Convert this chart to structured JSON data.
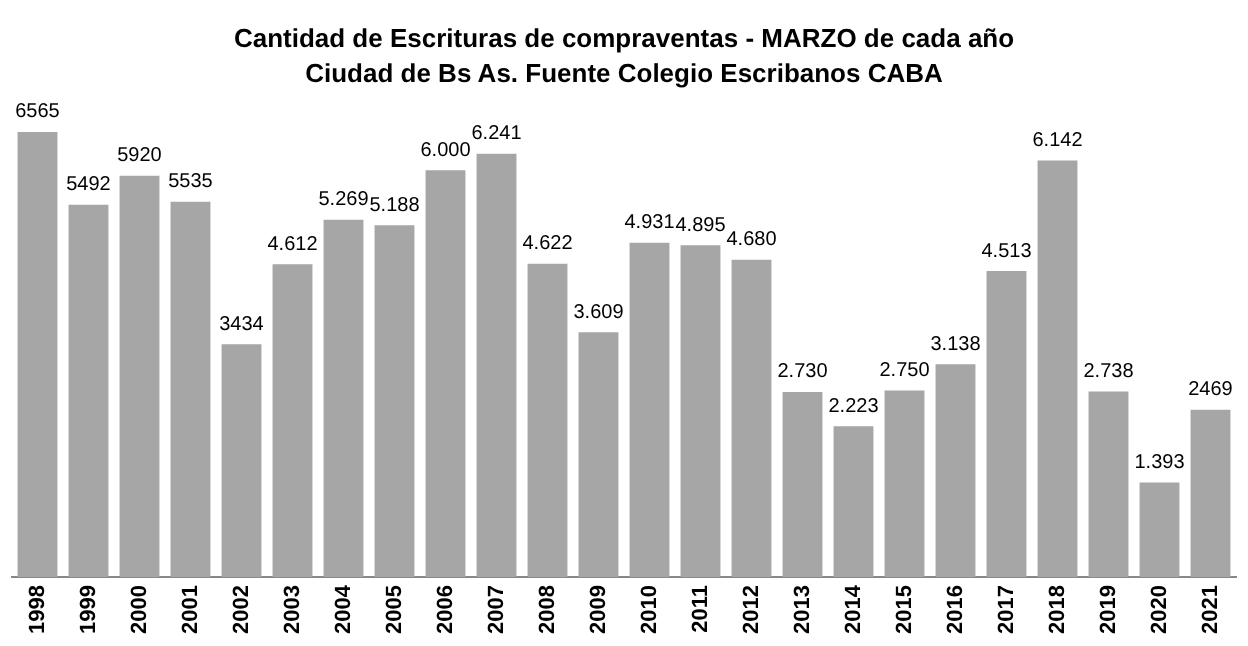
{
  "chart_data": {
    "type": "bar",
    "title": "Cantidad de Escrituras de compraventas - MARZO de cada año",
    "subtitle": "Ciudad de Bs As. Fuente Colegio Escribanos CABA",
    "categories": [
      "1998",
      "1999",
      "2000",
      "2001",
      "2002",
      "2003",
      "2004",
      "2005",
      "2006",
      "2007",
      "2008",
      "2009",
      "2010",
      "2011",
      "2012",
      "2013",
      "2014",
      "2015",
      "2016",
      "2017",
      "2018",
      "2019",
      "2020",
      "2021"
    ],
    "values": [
      6565,
      5492,
      5920,
      5535,
      3434,
      4612,
      5269,
      5188,
      6000,
      6241,
      4622,
      3609,
      4931,
      4895,
      4680,
      2730,
      2223,
      2750,
      3138,
      4513,
      6142,
      2738,
      1393,
      2469
    ],
    "value_labels": [
      "6565",
      "5492",
      "5920",
      "5535",
      "3434",
      "4.612",
      "5.269",
      "5.188",
      "6.000",
      "6.241",
      "4.622",
      "3.609",
      "4.931",
      "4.895",
      "4.680",
      "2.730",
      "2.223",
      "2.750",
      "3.138",
      "4.513",
      "6.142",
      "2.738",
      "1.393",
      "2469"
    ],
    "color": "#a6a6a6"
  }
}
